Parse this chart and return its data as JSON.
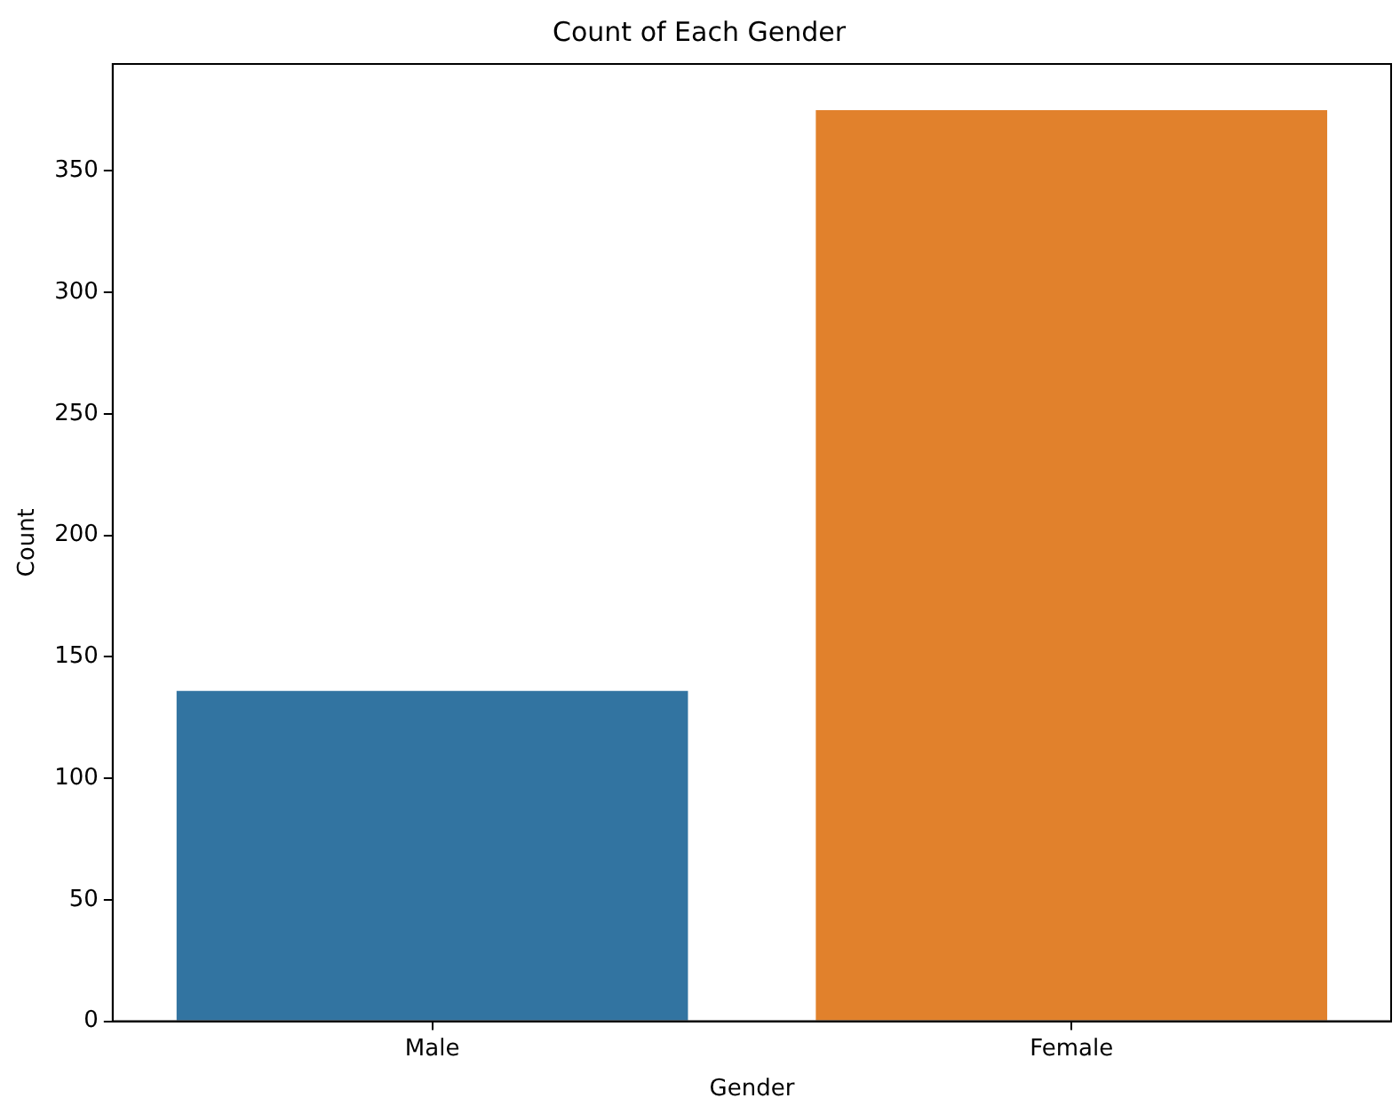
{
  "chart_data": {
    "type": "bar",
    "title": "Count of Each Gender",
    "xlabel": "Gender",
    "ylabel": "Count",
    "categories": [
      "Male",
      "Female"
    ],
    "values": [
      136,
      375
    ],
    "colors": [
      "#3274a1",
      "#e1812c"
    ],
    "ylim": [
      0,
      394
    ],
    "yticks": [
      0,
      50,
      100,
      150,
      200,
      250,
      300,
      350
    ],
    "grid": false,
    "legend": false
  }
}
